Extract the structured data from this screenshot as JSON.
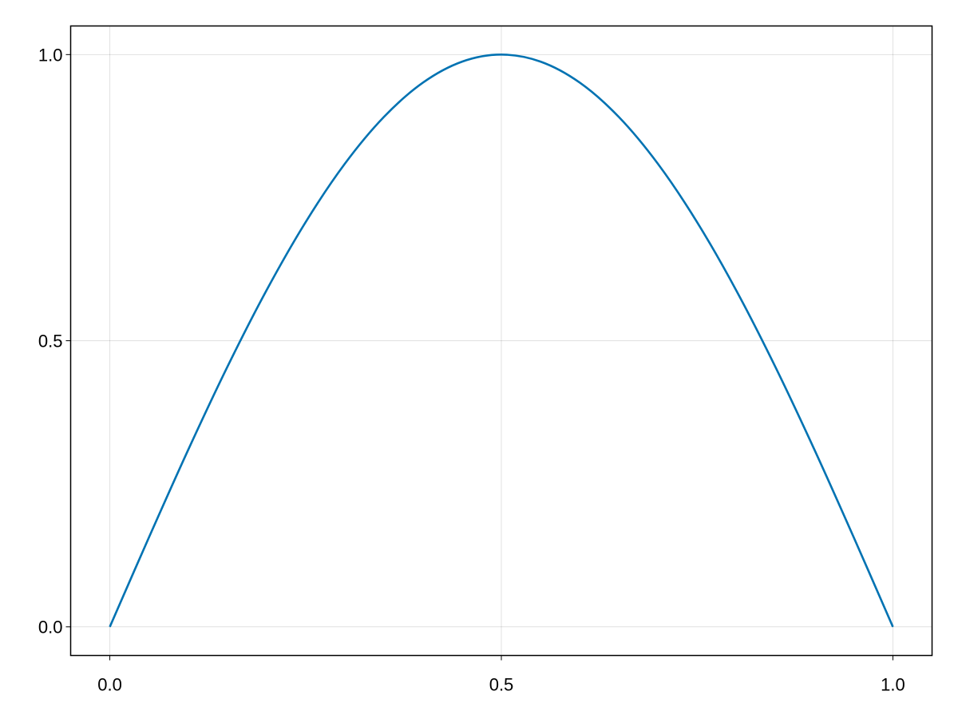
{
  "chart_data": {
    "type": "line",
    "title": "",
    "xlabel": "",
    "ylabel": "",
    "xlim": [
      -0.05,
      1.05
    ],
    "ylim": [
      -0.05,
      1.05
    ],
    "grid": true,
    "x_ticks": [
      "0.0",
      "0.5",
      "1.0"
    ],
    "x_tick_values": [
      0,
      0.5,
      1
    ],
    "y_ticks": [
      "0.0",
      "0.5",
      "1.0"
    ],
    "y_tick_values": [
      0,
      0.5,
      1
    ],
    "series": [
      {
        "color": "#0072B2",
        "x": [
          0,
          0.05,
          0.1,
          0.15,
          0.2,
          0.25,
          0.3,
          0.35,
          0.4,
          0.45,
          0.5,
          0.55,
          0.6,
          0.65,
          0.7,
          0.75,
          0.8,
          0.85,
          0.9,
          0.95,
          1.0
        ],
        "y": [
          0,
          0.1564,
          0.309,
          0.454,
          0.5878,
          0.7071,
          0.809,
          0.891,
          0.9511,
          0.9877,
          1.0,
          0.9877,
          0.9511,
          0.891,
          0.809,
          0.7071,
          0.5878,
          0.454,
          0.309,
          0.1564,
          0
        ]
      }
    ]
  }
}
